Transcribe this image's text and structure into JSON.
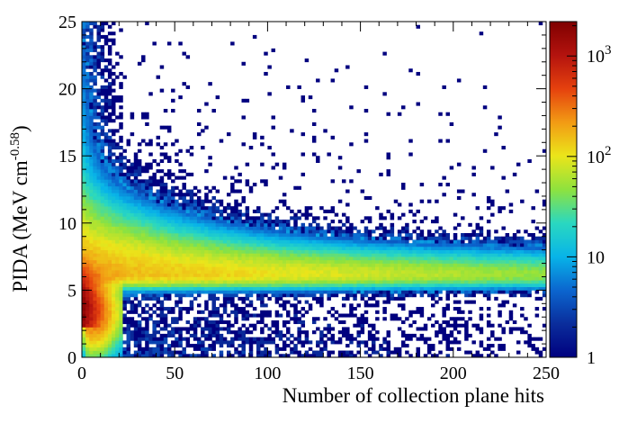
{
  "chart_data": {
    "type": "heatmap",
    "title": "",
    "xlabel": "Number of collection plane hits",
    "ylabel": "PIDA (MeV cm",
    "ylabel_sup": "-0.58",
    "ylabel_close": ")",
    "xlim": [
      0,
      250
    ],
    "ylim": [
      0,
      25
    ],
    "x_bin_width": 2,
    "y_bin_width": 0.25,
    "x_ticks": [
      0,
      50,
      100,
      150,
      200,
      250
    ],
    "x_tick_labels": [
      "0",
      "50",
      "100",
      "150",
      "200",
      "250"
    ],
    "y_ticks": [
      0,
      5,
      10,
      15,
      20,
      25
    ],
    "y_tick_labels": [
      "0",
      "5",
      "10",
      "15",
      "20",
      "25"
    ],
    "colorbar": {
      "scale": "log",
      "range": [
        1,
        2200
      ],
      "labels": [
        {
          "value": 1,
          "base": "1",
          "exp": ""
        },
        {
          "value": 10,
          "base": "10",
          "exp": ""
        },
        {
          "value": 100,
          "base": "10",
          "exp": "2"
        },
        {
          "value": 1000,
          "base": "10",
          "exp": "3"
        }
      ],
      "colors": [
        "#00007f",
        "#0a2d9c",
        "#0b66cf",
        "#08b4e8",
        "#2ad8c0",
        "#8ee23e",
        "#ebe51a",
        "#f29b14",
        "#e5410e",
        "#b4130e",
        "#7f0000"
      ]
    },
    "density_model": {
      "band_center": 6.2,
      "band_peak_count": 180,
      "low_x_peak_count": 2100,
      "low_x_center": 3.5
    }
  }
}
